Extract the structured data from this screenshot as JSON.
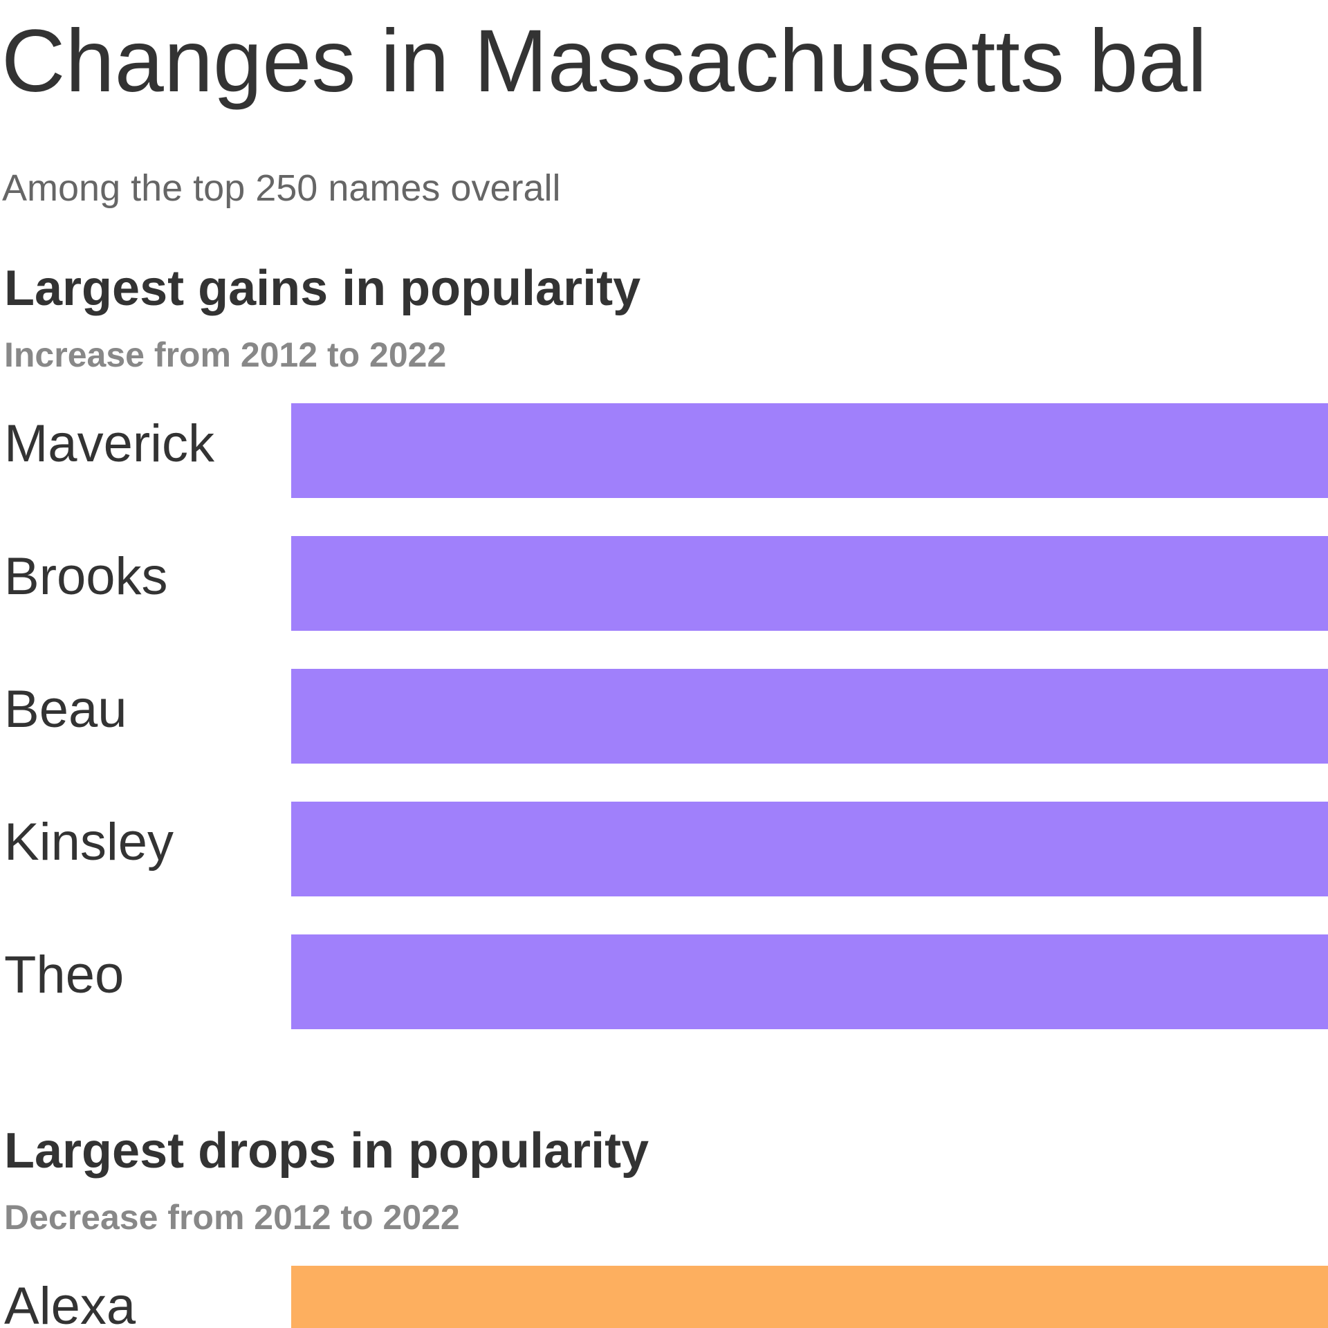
{
  "header": {
    "title": "Changes in Massachusetts bal",
    "subtitle": "Among the top 250 names overall"
  },
  "sections": [
    {
      "title": "Largest gains in popularity",
      "subtitle": "Increase from 2012 to 2022",
      "color": "#a080fb",
      "names": [
        "Maverick",
        "Brooks",
        "Beau",
        "Kinsley",
        "Theo"
      ]
    },
    {
      "title": "Largest drops in popularity",
      "subtitle": "Decrease from 2012 to 2022",
      "color": "#fdaf5f",
      "names": [
        "Alexa"
      ]
    }
  ]
}
